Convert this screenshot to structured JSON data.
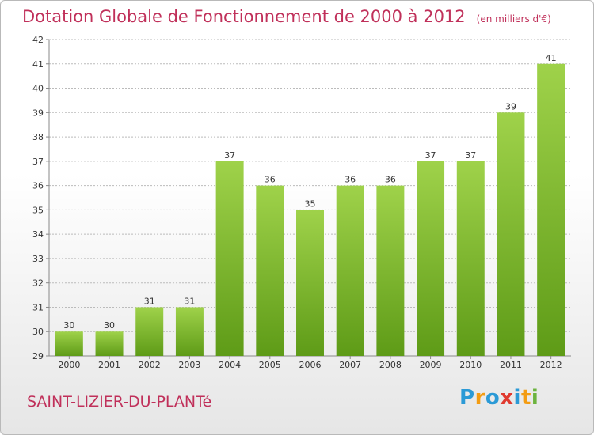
{
  "title": "Dotation Globale de Fonctionnement de 2000 à 2012",
  "subtitle": "(en milliers d'€)",
  "commune": "SAINT-LIZIER-DU-PLANTé",
  "logo": {
    "text": "Proxiti",
    "letters": [
      "P",
      "r",
      "o",
      "x",
      "i",
      "t",
      "i"
    ],
    "colors": [
      "#2b9ad6",
      "#f39c12",
      "#2b9ad6",
      "#e03a2f",
      "#2b9ad6",
      "#f39c12",
      "#6cb33e"
    ]
  },
  "colors": {
    "title": "#c0305a",
    "bar_top": "#9fd24a",
    "bar_bottom": "#5e9b17",
    "grid": "#bbbbbb"
  },
  "chart_data": {
    "type": "bar",
    "title": "Dotation Globale de Fonctionnement de 2000 à 2012",
    "subtitle": "(en milliers d'€)",
    "categories": [
      "2000",
      "2001",
      "2002",
      "2003",
      "2004",
      "2005",
      "2006",
      "2007",
      "2008",
      "2009",
      "2010",
      "2011",
      "2012"
    ],
    "values": [
      30,
      30,
      31,
      31,
      37,
      36,
      35,
      36,
      36,
      37,
      37,
      39,
      41
    ],
    "ylim": [
      29,
      42
    ],
    "yticks": [
      29,
      30,
      31,
      32,
      33,
      34,
      35,
      36,
      37,
      38,
      39,
      40,
      41,
      42
    ],
    "grid": true,
    "xlabel": "",
    "ylabel": ""
  }
}
